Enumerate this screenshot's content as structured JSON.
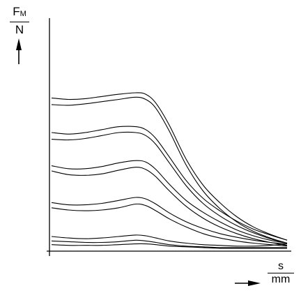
{
  "chart_data": {
    "type": "line",
    "y_label": {
      "numerator": "F",
      "numerator_sub": "M",
      "denominator": "N"
    },
    "x_label": {
      "numerator": "s",
      "denominator": "mm"
    },
    "grid": false,
    "legend": "none",
    "axis_ticks": "none",
    "x": [
      0,
      10,
      20,
      30,
      40,
      50,
      56,
      62,
      70,
      80,
      90,
      100,
      110,
      120,
      130,
      140
    ],
    "series": [
      {
        "values": [
          205,
          203,
          204,
          207,
          210,
          212,
          210,
          198,
          168,
          122,
          87,
          63,
          44,
          30,
          20,
          12
        ]
      },
      {
        "values": [
          196,
          195,
          197,
          200,
          203,
          206,
          203,
          191,
          160,
          114,
          79,
          55,
          37,
          24,
          15,
          8
        ]
      },
      {
        "values": [
          158,
          156,
          158,
          162,
          166,
          166,
          162,
          150,
          125,
          93,
          69,
          52,
          38,
          27,
          19,
          12
        ]
      },
      {
        "values": [
          149,
          148,
          150,
          154,
          158,
          158,
          154,
          142,
          117,
          86,
          62,
          45,
          32,
          22,
          14,
          8
        ]
      },
      {
        "values": [
          113,
          109,
          109,
          112,
          117,
          120,
          118,
          108,
          88,
          66,
          50,
          37,
          26,
          18,
          12,
          8
        ]
      },
      {
        "values": [
          106,
          101,
          100,
          102,
          107,
          111,
          108,
          98,
          79,
          58,
          42,
          30,
          21,
          14,
          9,
          5
        ]
      },
      {
        "values": [
          63,
          60,
          60,
          62,
          66,
          70,
          68,
          61,
          49,
          37,
          28,
          21,
          16,
          12,
          9,
          7
        ]
      },
      {
        "values": [
          56,
          53,
          52,
          53,
          56,
          61,
          59,
          52,
          41,
          30,
          21,
          15,
          11,
          8,
          6,
          4
        ]
      },
      {
        "values": [
          17,
          15,
          14,
          15,
          17,
          19,
          18,
          15,
          11,
          8,
          6,
          5,
          4,
          4,
          5,
          7
        ]
      },
      {
        "values": [
          11,
          10,
          9,
          9,
          10,
          12,
          11,
          9,
          6,
          4,
          3,
          2,
          2,
          2,
          2,
          2
        ]
      },
      {
        "values": [
          6,
          5,
          5,
          5,
          6,
          7,
          7,
          6,
          4,
          3,
          2,
          1,
          1,
          1,
          1,
          1
        ]
      }
    ],
    "xlim": [
      0,
      140
    ],
    "ylim": [
      0,
      300
    ]
  }
}
